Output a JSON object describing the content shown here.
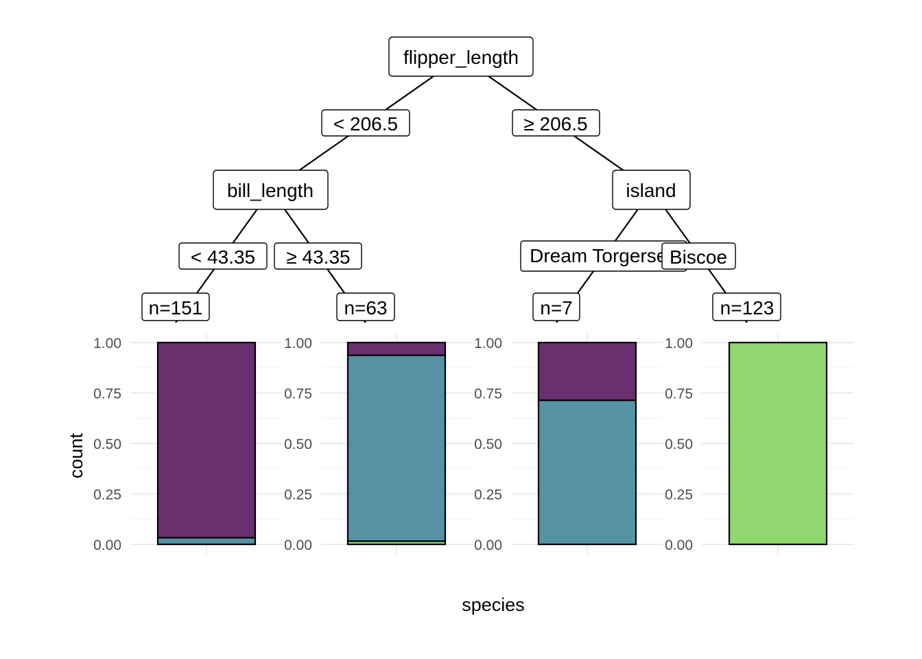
{
  "axes": {
    "x_title": "species",
    "y_title": "count",
    "y_ticks": [
      "0.00",
      "0.25",
      "0.50",
      "0.75",
      "1.00"
    ]
  },
  "tree": {
    "nodes": [
      {
        "id": "root",
        "label": "flipper_length"
      },
      {
        "id": "left",
        "label": "bill_length"
      },
      {
        "id": "right",
        "label": "island"
      }
    ],
    "edge_labels": [
      {
        "id": "root-left",
        "label": "< 206.5"
      },
      {
        "id": "root-right",
        "label": "≥ 206.5"
      },
      {
        "id": "left-leaf1",
        "label": "< 43.35"
      },
      {
        "id": "left-leaf2",
        "label": "≥ 43.35"
      },
      {
        "id": "right-leaf3",
        "label": "Dream Torgersen"
      },
      {
        "id": "right-leaf4",
        "label": "Biscoe"
      }
    ],
    "leaves": [
      {
        "id": "leaf1",
        "label": "n=151",
        "segments": [
          {
            "fraction": 0.033,
            "color": "#5592a4"
          },
          {
            "fraction": 0.967,
            "color": "#693070"
          }
        ]
      },
      {
        "id": "leaf2",
        "label": "n=63",
        "segments": [
          {
            "fraction": 0.016,
            "color": "#8fd76e"
          },
          {
            "fraction": 0.921,
            "color": "#5592a4"
          },
          {
            "fraction": 0.063,
            "color": "#693070"
          }
        ]
      },
      {
        "id": "leaf3",
        "label": "n=7",
        "segments": [
          {
            "fraction": 0.714,
            "color": "#5592a4"
          },
          {
            "fraction": 0.286,
            "color": "#693070"
          }
        ]
      },
      {
        "id": "leaf4",
        "label": "n=123",
        "segments": [
          {
            "fraction": 1.0,
            "color": "#8fd76e"
          }
        ]
      }
    ]
  },
  "colors": {
    "species_1": "#693070",
    "species_2": "#5592a4",
    "species_3": "#8fd76e"
  }
}
